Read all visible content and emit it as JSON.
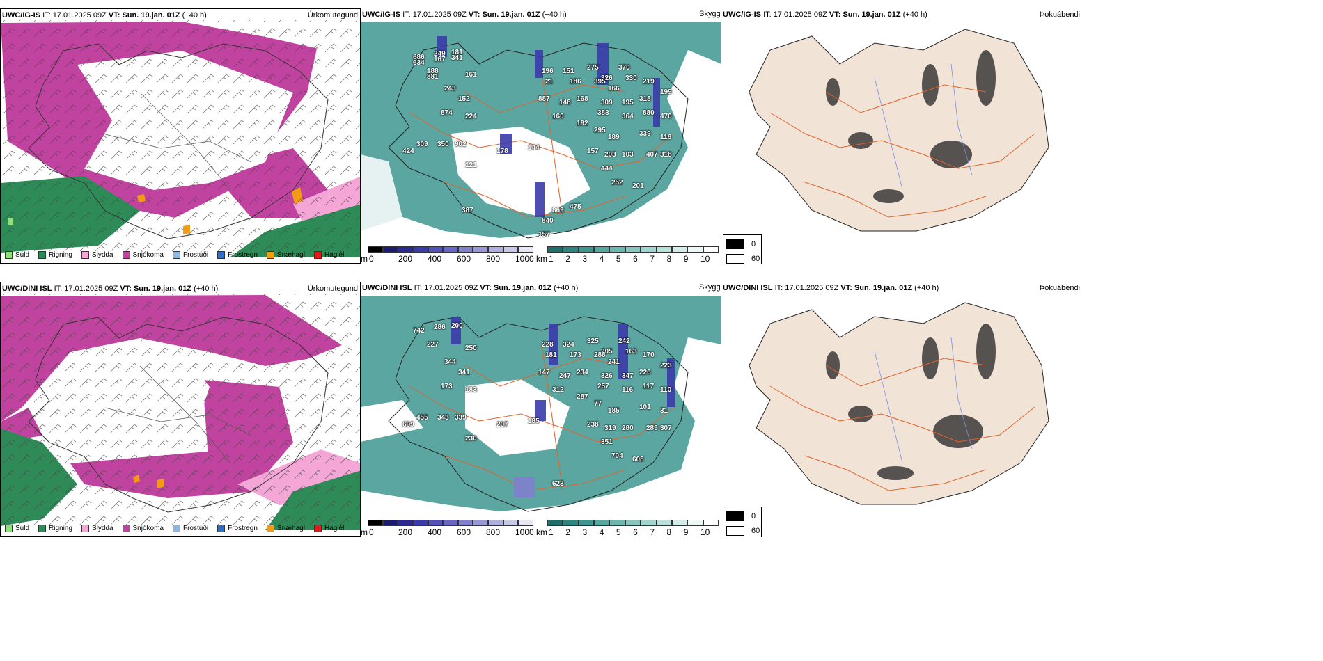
{
  "rows": [
    {
      "model": "UWC/IG-IS",
      "it_label": "IT:",
      "it_value": "17.01.2025 09Z",
      "vt_label": "VT:",
      "vt_value": "Sun. 19.jan. 01Z",
      "lead": "(+40 h)",
      "cloud_peaks": [
        "686",
        "249",
        "181",
        "188",
        "161",
        "243",
        "152",
        "874",
        "224",
        "424",
        "309",
        "350",
        "902",
        "121",
        "178",
        "144",
        "196",
        "151",
        "275",
        "370",
        "326",
        "330",
        "219",
        "21",
        "186",
        "395",
        "166",
        "887",
        "148",
        "168",
        "309",
        "195",
        "318",
        "199",
        "160",
        "192",
        "383",
        "364",
        "880",
        "470",
        "295",
        "189",
        "339",
        "116",
        "157",
        "203",
        "103",
        "407",
        "318",
        "444",
        "252",
        "201",
        "869",
        "475",
        "840",
        "157",
        "387",
        "634",
        "167",
        "341",
        "881"
      ]
    },
    {
      "model": "UWC/DINI ISL",
      "it_label": "IT:",
      "it_value": "17.01.2025 09Z",
      "vt_label": "VT:",
      "vt_value": "Sun. 19.jan. 01Z",
      "lead": "(+40 h)",
      "cloud_peaks": [
        "742",
        "286",
        "200",
        "227",
        "250",
        "344",
        "341",
        "173",
        "183",
        "699",
        "455",
        "343",
        "339",
        "230",
        "207",
        "185",
        "228",
        "324",
        "325",
        "242",
        "205",
        "163",
        "170",
        "181",
        "173",
        "288",
        "241",
        "147",
        "247",
        "234",
        "326",
        "347",
        "226",
        "223",
        "312",
        "287",
        "257",
        "116",
        "117",
        "110",
        "77",
        "185",
        "101",
        "31",
        "238",
        "319",
        "280",
        "289",
        "307",
        "351",
        "704",
        "608",
        "623"
      ]
    }
  ],
  "panel_types": {
    "precip": "Úrkomutegund",
    "cloud": "Skyggni",
    "fog": "Þokuábendi"
  },
  "precip_legend": [
    {
      "label": "Súld",
      "color": "#8fe07a"
    },
    {
      "label": "Rigning",
      "color": "#2e8b57"
    },
    {
      "label": "Slydda",
      "color": "#f4a6d7"
    },
    {
      "label": "Snjókoma",
      "color": "#c0449f"
    },
    {
      "label": "Frostúði",
      "color": "#8ab8e6"
    },
    {
      "label": "Frostregn",
      "color": "#2f6fc8"
    },
    {
      "label": "Snæhagl",
      "color": "#f39c12"
    },
    {
      "label": "Haglél",
      "color": "#e01b1b"
    }
  ],
  "cloudbase_scale": {
    "unit": "m",
    "ticks": [
      "0",
      "200",
      "400",
      "600",
      "800",
      "1000"
    ],
    "colors": [
      "#000000",
      "#1a1a6e",
      "#2a2a90",
      "#3b3baa",
      "#5252b8",
      "#6868c4",
      "#8080cc",
      "#9898d6",
      "#b0b0de",
      "#c8c8e8",
      "#e6e6f4"
    ]
  },
  "visibility_scale": {
    "unit": "km",
    "ticks": [
      "1",
      "2",
      "3",
      "4",
      "5",
      "6",
      "7",
      "8",
      "9",
      "10"
    ],
    "colors": [
      "#1f6f6a",
      "#2e8580",
      "#3f9690",
      "#55a7a0",
      "#6db7b0",
      "#86c6bf",
      "#a0d4ce",
      "#bae1dc",
      "#d3ece9",
      "#ecf7f6",
      "#ffffff"
    ]
  },
  "fog_legend": {
    "dark_value": "0",
    "light_value": "60",
    "dark_color": "#000000",
    "light_color": "#ffffff"
  },
  "colors": {
    "snow": "#c0449f",
    "rain": "#2e8b57",
    "sleet": "#f4a6d7",
    "ice_pellets": "#f39c12",
    "teal": "#3f9690",
    "land_beige": "#f1e3d6",
    "road": "#e2622c",
    "river": "#7a8ee8"
  }
}
